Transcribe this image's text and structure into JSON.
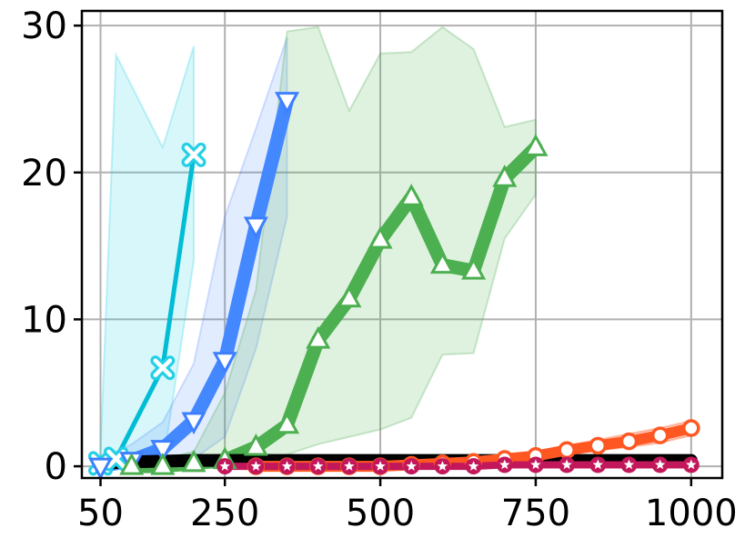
{
  "chart_data": {
    "type": "line",
    "title": "",
    "xlabel": "",
    "ylabel": "",
    "xlim": [
      20,
      1050
    ],
    "ylim": [
      -0.8,
      31
    ],
    "grid": true,
    "x_ticks": [
      {
        "value": 50,
        "label": "50"
      },
      {
        "value": 250,
        "label": "250"
      },
      {
        "value": 500,
        "label": "500"
      },
      {
        "value": 750,
        "label": "750"
      },
      {
        "value": 1000,
        "label": "1000"
      }
    ],
    "y_ticks": [
      {
        "value": 0,
        "label": "0"
      },
      {
        "value": 10,
        "label": "10"
      },
      {
        "value": 20,
        "label": "20"
      },
      {
        "value": 30,
        "label": "30"
      }
    ],
    "series": [
      {
        "color": "#25d0e6",
        "line_color": "#00bcd4",
        "marker": "x",
        "line_width": 5,
        "band_opacity": 0.18,
        "x": [
          50,
          75,
          150,
          200
        ],
        "y": [
          0.2,
          0.5,
          6.7,
          21.2
        ],
        "band_upper": [
          1,
          28,
          21.7,
          28.6
        ],
        "band_lower": [
          0,
          0,
          0,
          14
        ]
      },
      {
        "color": "#3d7fff",
        "line_color": "#4488ff",
        "marker": "triangle-down",
        "line_width": 15,
        "band_opacity": 0.15,
        "x": [
          50,
          100,
          150,
          200,
          250,
          300,
          350
        ],
        "y": [
          0.0,
          0.4,
          1.2,
          3.1,
          7.2,
          16.4,
          24.9
        ],
        "band_upper": [
          0.5,
          1.5,
          3,
          7,
          17,
          23,
          29.2
        ],
        "band_lower": [
          0,
          0,
          0,
          0.5,
          2,
          8,
          17
        ]
      },
      {
        "color": "#4caf50",
        "line_color": "#4caf50",
        "marker": "triangle-up",
        "line_width": 15,
        "band_opacity": 0.18,
        "x": [
          100,
          150,
          200,
          250,
          300,
          350,
          400,
          450,
          500,
          550,
          600,
          650,
          700,
          750
        ],
        "y": [
          0.0,
          0.0,
          0.2,
          0.4,
          1.3,
          2.8,
          8.6,
          11.4,
          15.4,
          18.3,
          13.7,
          13.3,
          19.6,
          21.7
        ],
        "band_upper": [
          0.3,
          0.5,
          1,
          5,
          12,
          29.6,
          29.9,
          24.2,
          28.1,
          28.2,
          29.9,
          28.4,
          23.1,
          23.6
        ],
        "band_lower": [
          0,
          0,
          0,
          0,
          0.2,
          0.8,
          1.5,
          2,
          2.5,
          3.3,
          7.6,
          7.7,
          15.5,
          18.5
        ]
      },
      {
        "color": "#000000",
        "line_color": "#000000",
        "marker": "none",
        "line_width": 14,
        "band_opacity": 0,
        "x": [
          50,
          100,
          200,
          300,
          400,
          500,
          600,
          700,
          800,
          900,
          1000
        ],
        "y": [
          0.2,
          0.3,
          0.4,
          0.4,
          0.4,
          0.4,
          0.4,
          0.4,
          0.4,
          0.4,
          0.4
        ],
        "band_upper": [],
        "band_lower": []
      },
      {
        "color": "#ff5722",
        "line_color": "#ff5722",
        "marker": "circle",
        "line_width": 12,
        "band_opacity": 0.25,
        "x": [
          300,
          350,
          400,
          450,
          500,
          550,
          600,
          650,
          700,
          750,
          800,
          850,
          900,
          950,
          1000
        ],
        "y": [
          0.0,
          0.0,
          0.0,
          0.0,
          0.0,
          0.1,
          0.2,
          0.3,
          0.5,
          0.7,
          1.1,
          1.4,
          1.7,
          2.1,
          2.6
        ],
        "band_upper": [
          0.1,
          0.1,
          0.1,
          0.1,
          0.2,
          0.3,
          0.4,
          0.5,
          0.7,
          1,
          1.4,
          1.8,
          2.2,
          2.6,
          3.1
        ],
        "band_lower": [
          0,
          0,
          0,
          0,
          0,
          0,
          0,
          0.1,
          0.3,
          0.5,
          0.8,
          1.1,
          1.3,
          1.6,
          2.1
        ]
      },
      {
        "color": "#c2185b",
        "line_color": "#c2185b",
        "marker": "star",
        "line_width": 8,
        "band_opacity": 0,
        "x": [
          250,
          300,
          350,
          400,
          450,
          500,
          550,
          600,
          650,
          700,
          750,
          800,
          850,
          900,
          950,
          1000
        ],
        "y": [
          0.0,
          0.0,
          0.0,
          0.0,
          0.0,
          0.0,
          0.0,
          0.0,
          0.0,
          0.1,
          0.1,
          0.1,
          0.1,
          0.1,
          0.1,
          0.1
        ],
        "band_upper": [],
        "band_lower": []
      }
    ]
  }
}
